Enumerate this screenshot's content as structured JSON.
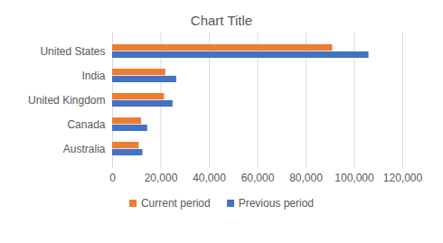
{
  "chart_data": {
    "type": "bar",
    "orientation": "horizontal",
    "title": "Chart Title",
    "categories": [
      "United States",
      "India",
      "United Kingdom",
      "Canada",
      "Australia"
    ],
    "series": [
      {
        "name": "Current period",
        "color": "#ED7D31",
        "values": [
          91000,
          22000,
          21500,
          12000,
          11000
        ]
      },
      {
        "name": "Previous period",
        "color": "#4472C4",
        "values": [
          106000,
          26500,
          25000,
          14500,
          12500
        ]
      }
    ],
    "xlim": [
      0,
      120000
    ],
    "xticks": [
      0,
      {
        "value": 20000,
        "label": "20,000"
      },
      {
        "value": 40000,
        "label": "40,000"
      },
      {
        "value": 60000,
        "label": "60,000"
      },
      {
        "value": 80000,
        "label": "80,000"
      },
      {
        "value": 100000,
        "label": "100,000"
      },
      {
        "value": 120000,
        "label": "120,000"
      }
    ],
    "grid": true,
    "legend": "bottom"
  }
}
